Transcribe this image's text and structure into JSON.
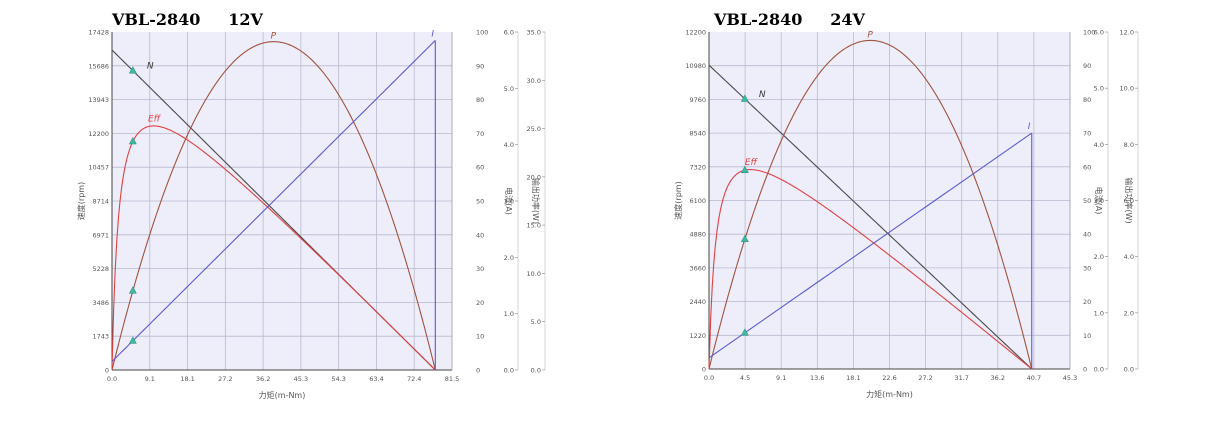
{
  "colors": {
    "plot_bg": "#eeeefa",
    "grid": "#b9b9cf",
    "N": "#4a4a4a",
    "P": "#a0523d",
    "Eff": "#e04040",
    "I": "#5a5ad0",
    "marker": "#40b8a0",
    "pink": "#e070e0",
    "frame": "#444444"
  },
  "chart_data": [
    {
      "type": "line",
      "title": "VBL-2840     12V",
      "xlabel": "力矩(m-Nm)",
      "ylabel": "速度(rpm)",
      "x_ticks": [
        "0.0",
        "9.1",
        "18.1",
        "27.2",
        "36.2",
        "45.3",
        "54.3",
        "63.4",
        "72.4",
        "81.5"
      ],
      "y_ticks": [
        "0",
        "1743",
        "3486",
        "5228",
        "6971",
        "8714",
        "10457",
        "12200",
        "13943",
        "15686",
        "17428"
      ],
      "xlim": [
        0,
        81.5
      ],
      "ylim": [
        0,
        17428
      ],
      "right_ticks": [
        "0",
        "10",
        "20",
        "30",
        "40",
        "50",
        "60",
        "70",
        "80",
        "90",
        "100"
      ],
      "pink_axes": [
        {
          "label": "电流(A)",
          "ticks": [
            "0.0",
            "1.0",
            "2.0",
            "3.0",
            "4.0",
            "5.0",
            "6.0"
          ]
        },
        {
          "label": "输出功率(W)",
          "ticks": [
            "0.0",
            "5.0",
            "10.0",
            "15.0",
            "20.0",
            "25.0",
            "30.0",
            "35.0"
          ]
        }
      ],
      "curves": {
        "N": {
          "label": "N",
          "stall_torque": 77.5,
          "no_load_speed": 16500
        },
        "P": {
          "label": "P",
          "peak_torque": 38.75,
          "peak_output": 34.0
        },
        "Eff": {
          "label": "Eff",
          "stall_torque": 77.5,
          "peak_percent": 72,
          "peak_torque": 11.5,
          "no_load_percent": 0
        },
        "I": {
          "label": "I",
          "no_load_current": 0.15,
          "stall_current": 5.85
        }
      },
      "markers": {
        "torque": 5.0,
        "series": [
          "N",
          "Eff",
          "P",
          "I"
        ]
      }
    },
    {
      "type": "line",
      "title": "VBL-2840     24V",
      "xlabel": "力矩(m-Nm)",
      "ylabel": "速度(rpm)",
      "x_ticks": [
        "0.0",
        "4.5",
        "9.1",
        "13.6",
        "18.1",
        "22.6",
        "27.2",
        "31.7",
        "36.2",
        "40.7",
        "45.3"
      ],
      "y_ticks": [
        "0",
        "1220",
        "2440",
        "3660",
        "4880",
        "6100",
        "7320",
        "8540",
        "9760",
        "10980",
        "12200"
      ],
      "xlim": [
        0,
        45.3
      ],
      "ylim": [
        0,
        12200
      ],
      "right_ticks": [
        "0",
        "10",
        "20",
        "30",
        "40",
        "50",
        "60",
        "70",
        "80",
        "90",
        "100"
      ],
      "pink_axes": [
        {
          "label": "电流(A)",
          "ticks": [
            "0.0",
            "1.0",
            "2.0",
            "3.0",
            "4.0",
            "5.0",
            "6.0"
          ]
        },
        {
          "label": "输出功率(W)",
          "ticks": [
            "0.0",
            "2.0",
            "4.0",
            "6.0",
            "8.0",
            "10.0",
            "12.0"
          ]
        }
      ],
      "curves": {
        "N": {
          "label": "N",
          "stall_torque": 40.5,
          "no_load_speed": 11000
        },
        "P": {
          "label": "P",
          "peak_torque": 20.25,
          "peak_output": 11.7
        },
        "Eff": {
          "label": "Eff",
          "stall_torque": 40.5,
          "peak_percent": 59,
          "peak_torque": 6.0,
          "no_load_percent": 0
        },
        "I": {
          "label": "I",
          "no_load_current": 0.2,
          "stall_current": 4.2
        }
      },
      "markers": {
        "torque": 4.5,
        "series": [
          "N",
          "Eff",
          "P",
          "I"
        ]
      }
    }
  ]
}
